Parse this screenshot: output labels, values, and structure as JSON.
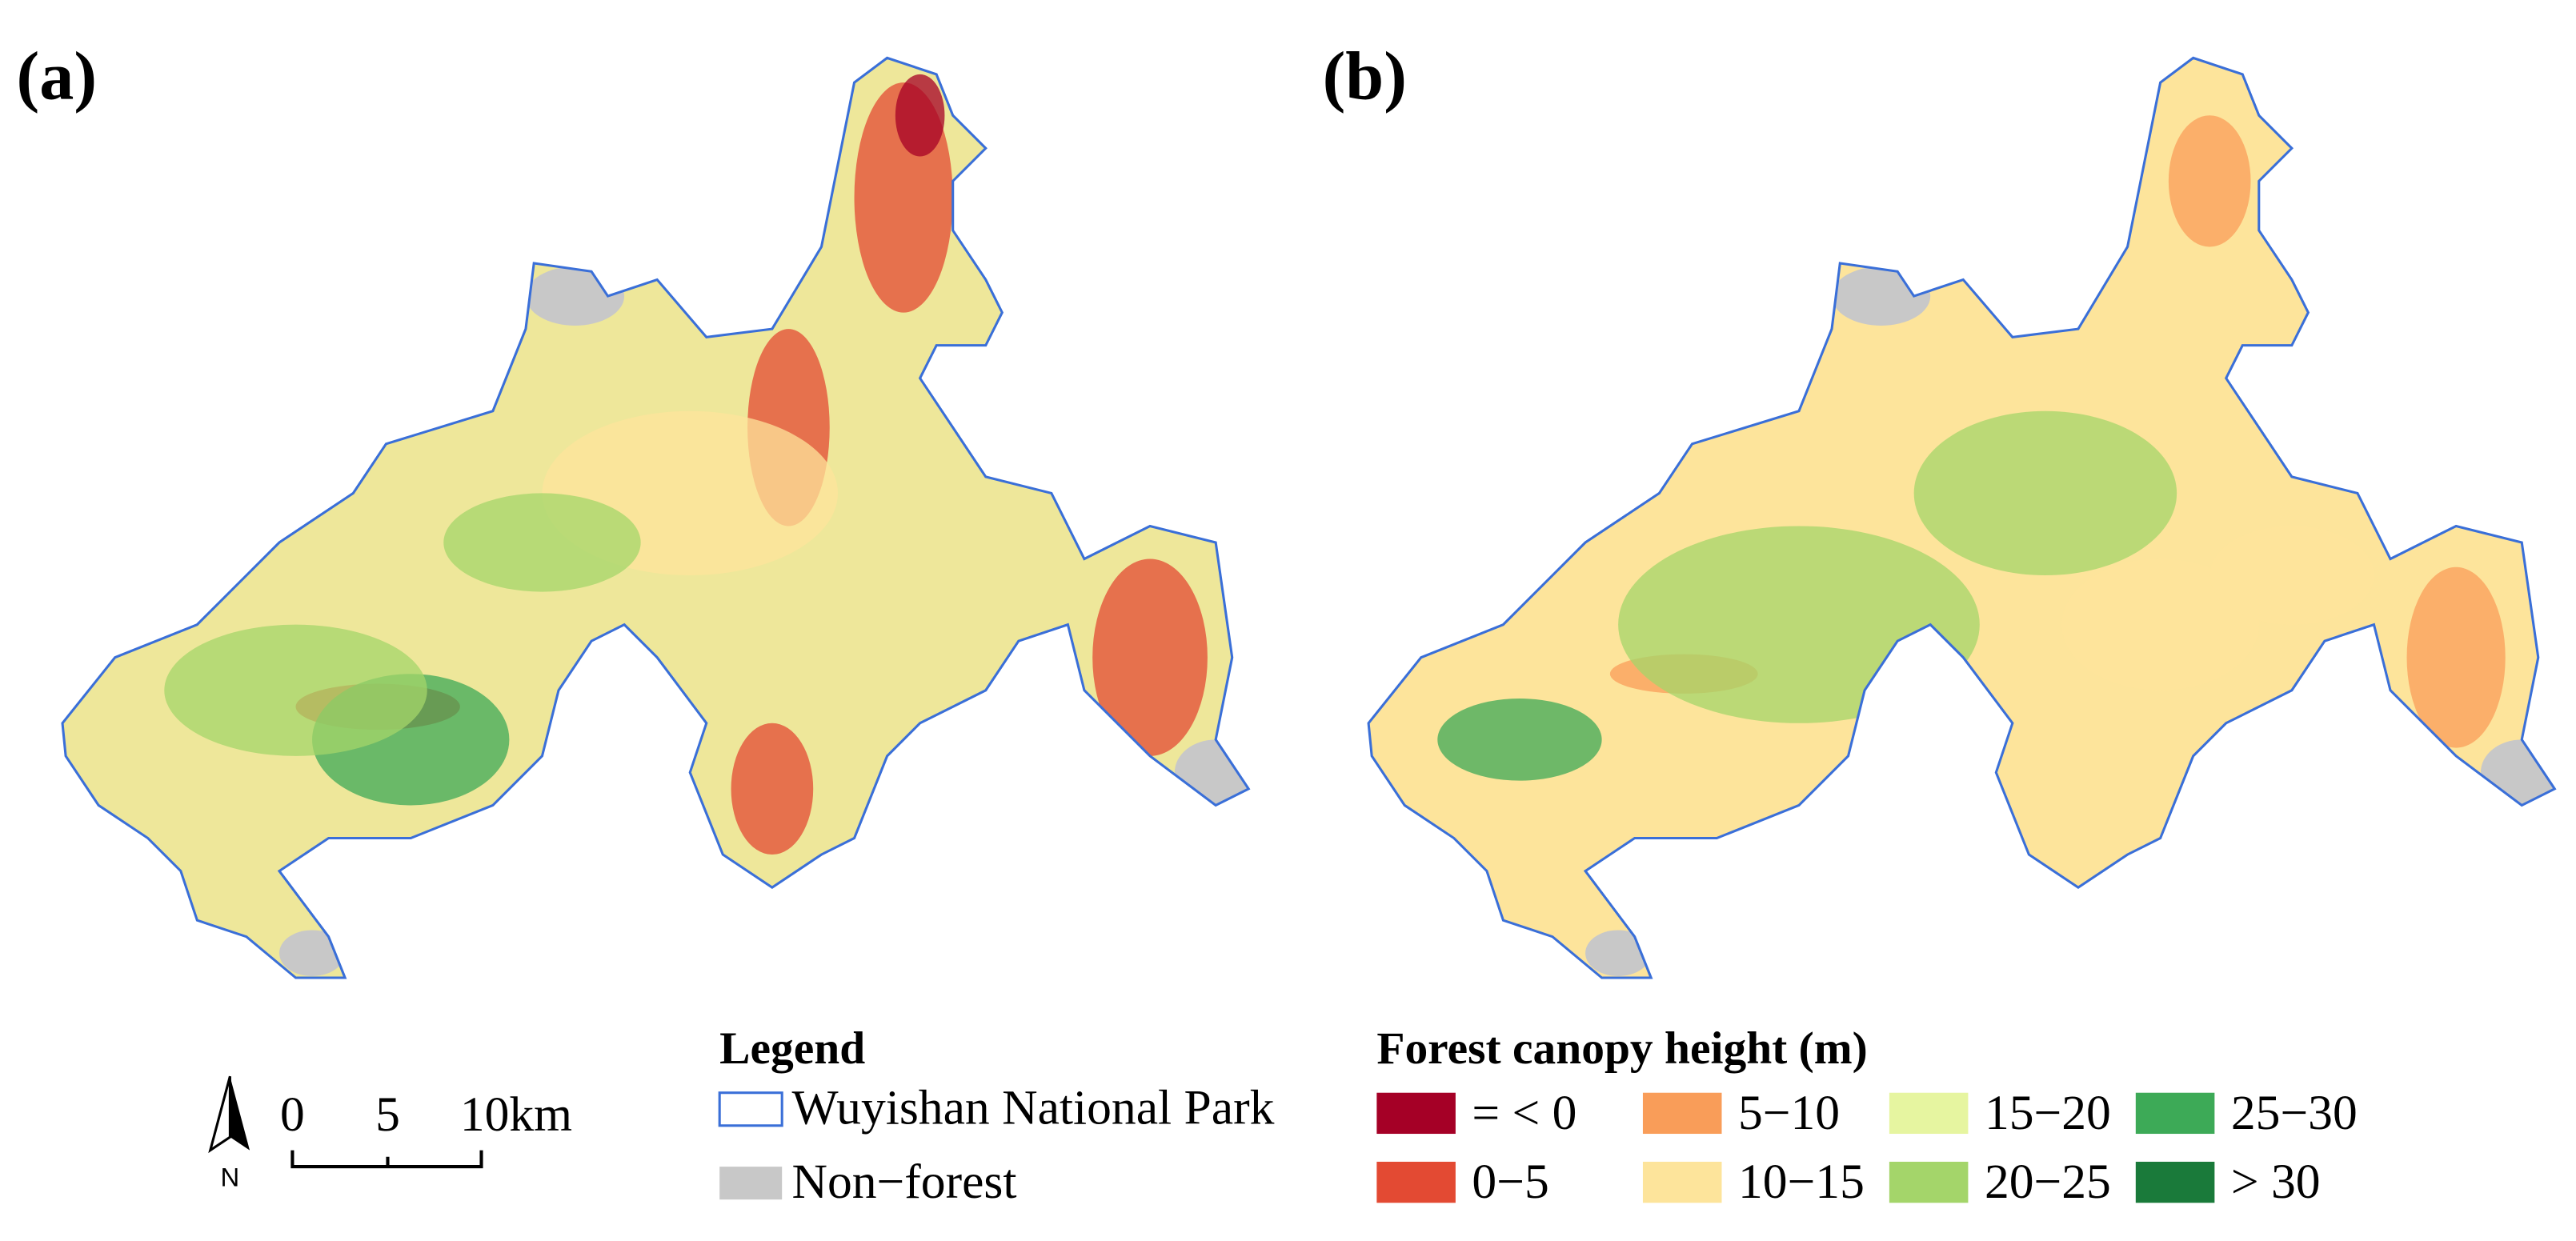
{
  "panels": [
    {
      "label": "(a)"
    },
    {
      "label": "(b)"
    }
  ],
  "scale_bar": {
    "ticks": [
      "0",
      "5",
      "10km"
    ],
    "north": "N"
  },
  "legend": {
    "title": "Legend",
    "items": [
      {
        "label": "Wuyishan National Park",
        "color": "#3a6fd8"
      },
      {
        "label": "Non−forest",
        "color": "#c8c8c8"
      }
    ]
  },
  "canopy_legend": {
    "title": "Forest canopy height (m)",
    "classes": [
      {
        "label": "= < 0",
        "color": "#a50026"
      },
      {
        "label": "0−5",
        "color": "#e34a33"
      },
      {
        "label": "5−10",
        "color": "#f99d59"
      },
      {
        "label": "10−15",
        "color": "#fde49b"
      },
      {
        "label": "15−20",
        "color": "#e6f5a0"
      },
      {
        "label": "20−25",
        "color": "#a4d56a"
      },
      {
        "label": "25−30",
        "color": "#3daa57"
      },
      {
        "label": "> 30",
        "color": "#1a7a3a"
      }
    ]
  }
}
